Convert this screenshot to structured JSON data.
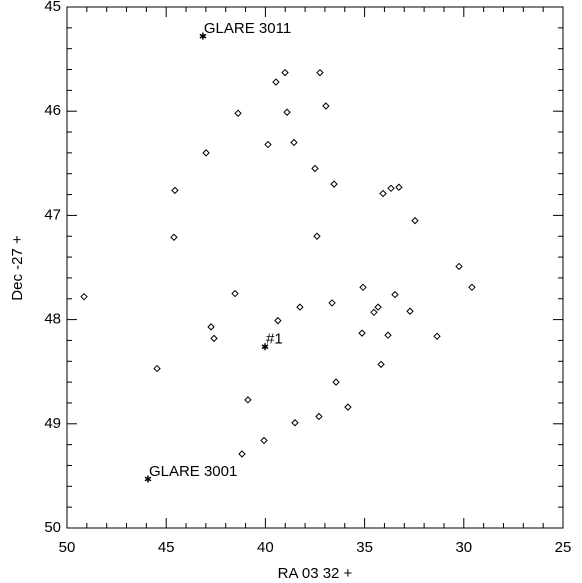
{
  "chart_data": {
    "type": "scatter",
    "xlabel": "RA   03 32 +",
    "ylabel": "Dec   -27 +",
    "xlim": [
      50,
      25
    ],
    "ylim": [
      50,
      45
    ],
    "xticks": [
      50,
      45,
      40,
      35,
      30,
      25
    ],
    "yticks": [
      45,
      46,
      47,
      48,
      49,
      50
    ],
    "minor_ticks": {
      "x": 5,
      "y": 5
    },
    "color": "#000000",
    "x": [
      39.47,
      39.01,
      37.25,
      36.95,
      38.91,
      41.38,
      39.87,
      38.56,
      42.99,
      37.5,
      36.54,
      44.56,
      34.07,
      33.67,
      33.27,
      32.46,
      44.61,
      37.4,
      30.24,
      41.53,
      49.14,
      35.08,
      33.47,
      36.64,
      38.26,
      34.32,
      34.53,
      32.71,
      39.37,
      42.74,
      42.59,
      35.13,
      33.82,
      31.35,
      45.46,
      34.17,
      36.44,
      40.88,
      35.84,
      37.3,
      38.51,
      40.07,
      41.18,
      29.59
    ],
    "y": [
      45.72,
      45.63,
      45.63,
      45.95,
      46.01,
      46.02,
      46.32,
      46.3,
      46.4,
      46.55,
      46.7,
      46.76,
      46.79,
      46.74,
      46.73,
      47.05,
      47.21,
      47.2,
      47.49,
      47.75,
      47.78,
      47.69,
      47.76,
      47.84,
      47.88,
      47.88,
      47.93,
      47.92,
      48.01,
      48.07,
      48.18,
      48.13,
      48.15,
      48.16,
      48.47,
      48.43,
      48.6,
      48.77,
      48.84,
      48.93,
      48.99,
      49.16,
      49.29,
      47.69
    ],
    "stars": {
      "labels": [
        "GLARE 3011",
        "#1",
        "GLARE 3001"
      ],
      "x": [
        43.15,
        40.02,
        45.92
      ],
      "y": [
        45.28,
        48.26,
        49.53
      ]
    }
  }
}
